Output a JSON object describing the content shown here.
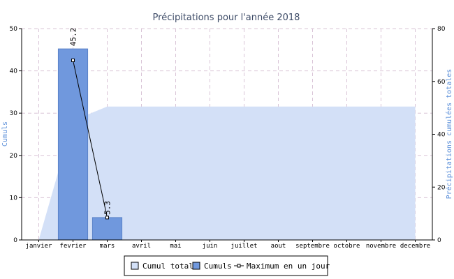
{
  "chart_data": {
    "type": "bar",
    "title": "Précipitations pour l'année 2018",
    "categories": [
      "janvier",
      "fevrier",
      "mars",
      "avril",
      "mai",
      "juin",
      "juillet",
      "aout",
      "septembre",
      "octobre",
      "novembre",
      "decembre"
    ],
    "ylabel": "Cumuls",
    "y2label": "Précipitations cumulées totales",
    "ylim": [
      0,
      50
    ],
    "y2lim": [
      0,
      80
    ],
    "yticks": [
      0,
      10,
      20,
      30,
      40,
      50
    ],
    "y2ticks": [
      0,
      20,
      40,
      60,
      80
    ],
    "grid": true,
    "legend_position": "bottom",
    "series": [
      {
        "name": "Cumul total",
        "kind": "area",
        "axis": "right",
        "color": "#d3e0f7",
        "values": [
          0,
          45.2,
          50.5,
          50.5,
          50.5,
          50.5,
          50.5,
          50.5,
          50.5,
          50.5,
          50.5,
          50.5
        ]
      },
      {
        "name": "Cumuls",
        "kind": "bar",
        "axis": "left",
        "color": "#7098dd",
        "values": [
          0,
          45.2,
          5.3,
          0,
          0,
          0,
          0,
          0,
          0,
          0,
          0,
          0
        ],
        "data_labels": [
          null,
          "45.2",
          "5.3",
          null,
          null,
          null,
          null,
          null,
          null,
          null,
          null,
          null
        ]
      },
      {
        "name": "Maximum en un jour",
        "kind": "line",
        "axis": "left",
        "color": "#000000",
        "points": [
          {
            "category": "fevrier",
            "value": 42.5
          },
          {
            "category": "mars",
            "value": 5.3
          }
        ]
      }
    ]
  }
}
